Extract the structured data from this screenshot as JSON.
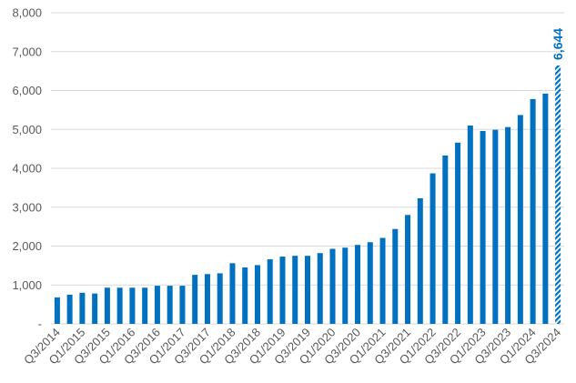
{
  "chart_data": {
    "type": "bar",
    "categories": [
      "Q3/2014",
      null,
      "Q1/2015",
      null,
      "Q3/2015",
      null,
      "Q1/2016",
      null,
      "Q3/2016",
      null,
      "Q1/2017",
      null,
      "Q3/2017",
      null,
      "Q1/2018",
      null,
      "Q3/2018",
      null,
      "Q1/2019",
      null,
      "Q3/2019",
      null,
      "Q1/2020",
      null,
      "Q3/2020",
      null,
      "Q1/2021",
      null,
      "Q3/2021",
      null,
      "Q1/2022",
      null,
      "Q3/2022",
      null,
      "Q1/2023",
      null,
      "Q3/2023",
      null,
      "Q1/2024",
      null,
      "Q3/2024"
    ],
    "values": [
      680,
      750,
      800,
      780,
      930,
      930,
      930,
      930,
      980,
      980,
      980,
      1260,
      1280,
      1300,
      1560,
      1450,
      1510,
      1660,
      1730,
      1750,
      1750,
      1820,
      1930,
      1960,
      2030,
      2100,
      2210,
      2440,
      2800,
      3230,
      3870,
      4330,
      4660,
      5100,
      4960,
      4990,
      5060,
      5370,
      5780,
      5920,
      6644
    ],
    "value_labels": [
      null,
      null,
      null,
      null,
      null,
      null,
      null,
      null,
      null,
      null,
      null,
      null,
      null,
      null,
      null,
      null,
      null,
      null,
      null,
      null,
      null,
      null,
      null,
      null,
      null,
      null,
      null,
      null,
      null,
      null,
      null,
      null,
      null,
      null,
      null,
      null,
      null,
      null,
      null,
      null,
      "6,644"
    ],
    "color": "#0070c0",
    "last_bar_hatched": true,
    "ylim": [
      0,
      8000
    ],
    "yticks": [
      {
        "value": 0,
        "label": "-"
      },
      {
        "value": 1000,
        "label": "1,000"
      },
      {
        "value": 2000,
        "label": "2,000"
      },
      {
        "value": 3000,
        "label": "3,000"
      },
      {
        "value": 4000,
        "label": "4,000"
      },
      {
        "value": 5000,
        "label": "5,000"
      },
      {
        "value": 6000,
        "label": "6,000"
      },
      {
        "value": 7000,
        "label": "7,000"
      },
      {
        "value": 8000,
        "label": "8,000"
      }
    ],
    "grid": true
  }
}
